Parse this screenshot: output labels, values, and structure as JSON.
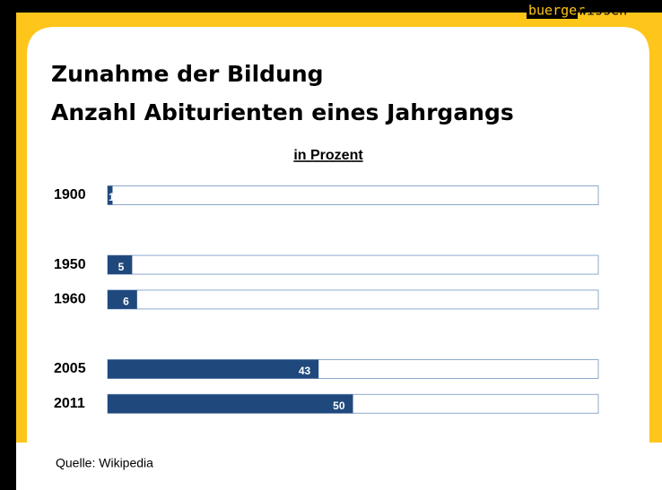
{
  "logo": [
    "buerger",
    "wissen"
  ],
  "chart_data": {
    "type": "bar",
    "orientation": "horizontal",
    "title": [
      "Zunahme der Bildung",
      "Anzahl Abiturienten eines Jahrgangs"
    ],
    "subtitle": "in Prozent",
    "categories": [
      "1900",
      null,
      "1950",
      "1960",
      null,
      "2005",
      "2011"
    ],
    "values": [
      1,
      null,
      5,
      6,
      null,
      43,
      50
    ],
    "color": "#1f497d",
    "xlim": [
      0,
      100
    ],
    "source": "Quelle: Wikipedia"
  }
}
